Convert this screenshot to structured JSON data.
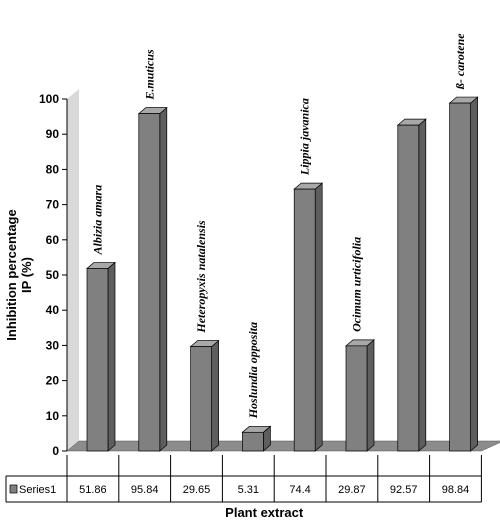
{
  "chart_data": {
    "type": "bar",
    "categories": [
      "Albizia amara",
      "E.muticus",
      "Heteropyxis natalensis",
      "Hoslundia opposita",
      "Lippia javanica",
      "Ocimum urticifolia",
      "",
      "ß- carotene"
    ],
    "series": [
      {
        "name": "Series1",
        "values": [
          51.86,
          95.84,
          29.65,
          5.31,
          74.4,
          29.87,
          92.57,
          98.84
        ]
      }
    ],
    "ylabel": "Inhibition percentage IP (%)",
    "ylabel_lines": [
      "Inhibition percentage",
      "IP (%)"
    ],
    "xlabel": "Plant extract",
    "ylim": [
      0,
      100
    ],
    "yticks": [
      0,
      10,
      20,
      30,
      40,
      50,
      60,
      70,
      80,
      90,
      100
    ],
    "data_table": true,
    "colors": {
      "bar_front": "#808080",
      "bar_side": "#5e5e5e",
      "bar_top": "#a8a8a8",
      "wall": "#d9d9d9",
      "floor": "#8c8c8c"
    }
  }
}
